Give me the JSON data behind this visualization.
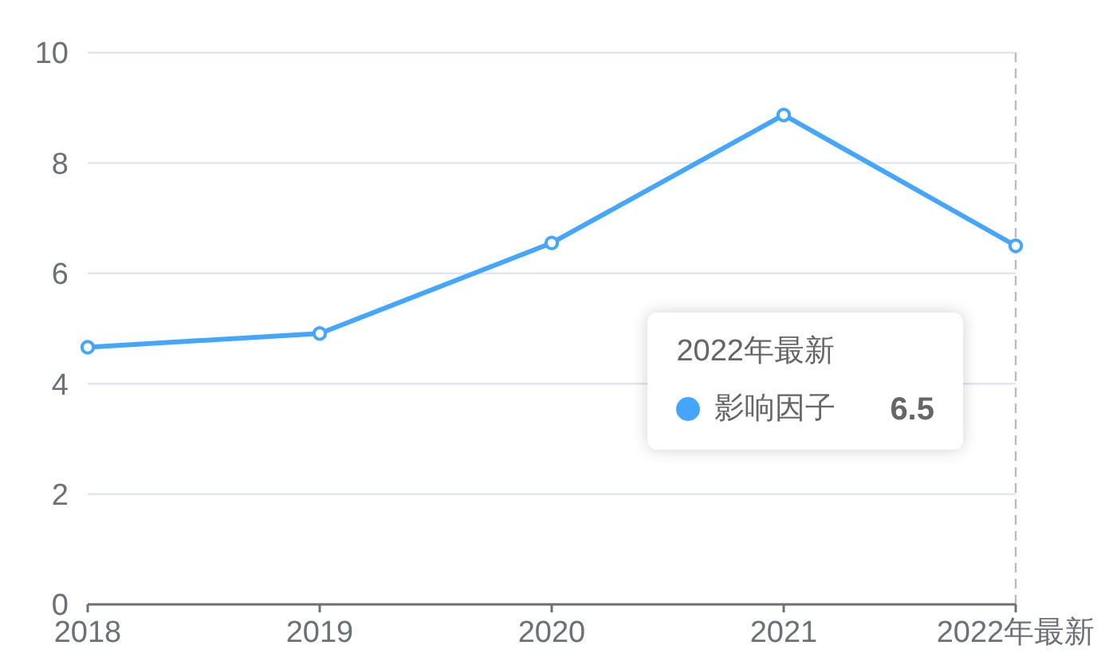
{
  "chart_data": {
    "type": "line",
    "categories": [
      "2018",
      "2019",
      "2020",
      "2021",
      "2022年最新"
    ],
    "series": [
      {
        "name": "影响因子",
        "color": "#44a6ff",
        "values": [
          4.66,
          4.91,
          6.55,
          8.87,
          6.5
        ]
      }
    ],
    "ylim": [
      0,
      10
    ],
    "yticks": [
      0,
      2,
      4,
      6,
      8,
      10
    ],
    "grid": "y",
    "legend": "right",
    "marker": "circle",
    "line_style": "solid",
    "ref_lines": [
      {
        "axis": "x",
        "value": "2022年最新",
        "color": "#b8bbc4",
        "line_style": "dashed"
      }
    ],
    "annotations": [
      "2022年最新",
      "6.5"
    ]
  }
}
